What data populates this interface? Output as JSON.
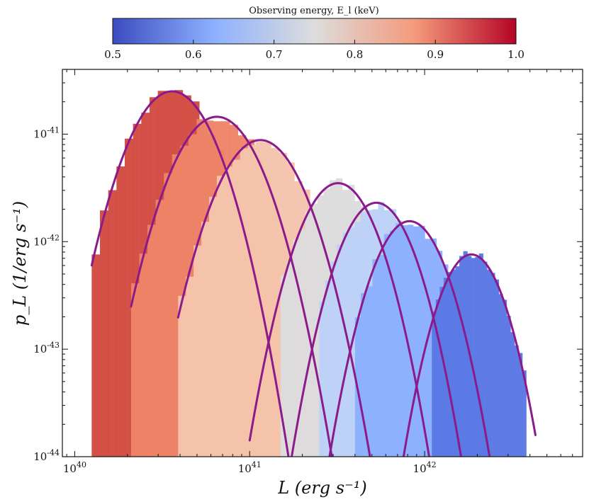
{
  "chart_data": {
    "type": "histogram",
    "xlabel": "L (erg s⁻¹)",
    "ylabel": "p_L (1/erg s⁻¹)",
    "x_scale": "log",
    "y_scale": "log",
    "xlim": [
      8.5e+39,
      8e+42
    ],
    "ylim": [
      1e-44,
      4e-41
    ],
    "x_ticks": [
      {
        "value": 1e+40,
        "label": "10^40"
      },
      {
        "value": 1e+41,
        "label": "10^41"
      },
      {
        "value": 1e+42,
        "label": "10^42"
      }
    ],
    "y_ticks": [
      {
        "value": 1e-41,
        "label": "10^-41"
      },
      {
        "value": 1e-42,
        "label": "10^-42"
      },
      {
        "value": 1e-43,
        "label": "10^-43"
      },
      {
        "value": 1e-44,
        "label": "10^-44"
      }
    ],
    "colorbar": {
      "label": "Observing energy, E_l (keV)",
      "min": 0.5,
      "max": 1.0,
      "colormap": "coolwarm",
      "ticks": [
        "0.5",
        "0.6",
        "0.7",
        "0.8",
        "0.9",
        "1.0"
      ]
    },
    "fit_color": "#8b1a8b",
    "series": [
      {
        "energy_keV": 1.0,
        "color": "#d24b40",
        "peak_L": 3.6e+40,
        "peak_p": 2.5e-41,
        "hist_range": [
          1.25e+40,
          1.7e+41
        ],
        "fit_range": [
          1.25e+40,
          1.8e+41
        ]
      },
      {
        "energy_keV": 0.917,
        "color": "#ee8468",
        "peak_L": 6.5e+40,
        "peak_p": 1.45e-41,
        "hist_range": [
          2.1e+40,
          2.8e+41
        ],
        "fit_range": [
          2.1e+40,
          3.2e+41
        ]
      },
      {
        "energy_keV": 0.833,
        "color": "#f5c4ac",
        "peak_L": 1.15e+41,
        "peak_p": 8.8e-42,
        "hist_range": [
          3.9e+40,
          4.5e+41
        ],
        "fit_range": [
          3.9e+40,
          5.3e+41
        ]
      },
      {
        "energy_keV": 0.75,
        "color": "#dcdcdd",
        "peak_L": 3.2e+41,
        "peak_p": 3.5e-42,
        "hist_range": [
          1.5e+41,
          1.05e+42
        ],
        "fit_range": [
          1e+41,
          1.15e+42
        ]
      },
      {
        "energy_keV": 0.667,
        "color": "#bcd2f7",
        "peak_L": 5.3e+41,
        "peak_p": 2.3e-42,
        "hist_range": [
          2.5e+41,
          1.6e+42
        ],
        "fit_range": [
          1.7e+41,
          1.75e+42
        ]
      },
      {
        "energy_keV": 0.583,
        "color": "#8caffe",
        "peak_L": 8.2e+41,
        "peak_p": 1.55e-42,
        "hist_range": [
          4e+41,
          2.5e+42
        ],
        "fit_range": [
          2.7e+41,
          2.55e+42
        ]
      },
      {
        "energy_keV": 0.5,
        "color": "#5a78e4",
        "peak_L": 1.85e+42,
        "peak_p": 7.6e-43,
        "hist_range": [
          1.1e+42,
          3.8e+42
        ],
        "fit_range": [
          7e+41,
          4.3e+42
        ]
      }
    ]
  }
}
